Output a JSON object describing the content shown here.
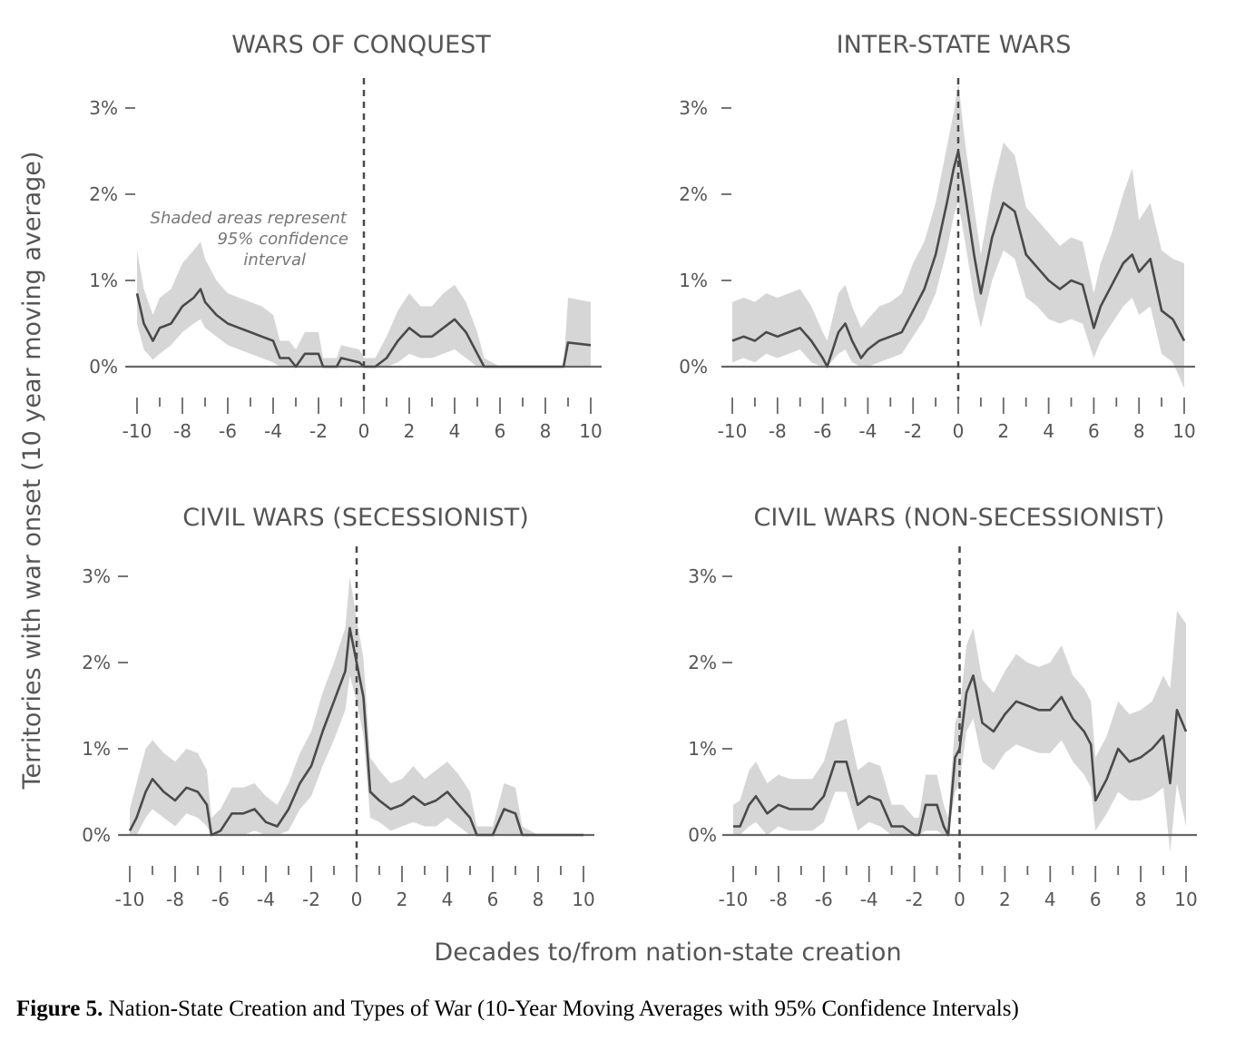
{
  "shared": {
    "y_axis_label": "Territories with war onset (10 year moving average)",
    "x_axis_label": "Decades to/from nation-state creation",
    "annotation_lines": [
      "Shaded areas represent",
      "95% confidence",
      "interval"
    ]
  },
  "caption": {
    "label": "Figure 5.",
    "text": "Nation-State Creation and Types of War (10-Year Moving Averages with 95% Confidence Intervals)"
  },
  "colors": {
    "line": "#4a4a4a",
    "band": "#d6d6d6",
    "axis": "#666666",
    "text": "#555555"
  },
  "chart_data": [
    {
      "type": "line",
      "title": "WARS OF CONQUEST",
      "ylim": [
        0,
        3
      ],
      "xlim": [
        -10,
        10
      ],
      "y_ticks": [
        "0%",
        "1%",
        "2%",
        "3%"
      ],
      "x_ticks": [
        "-10",
        "-8",
        "-6",
        "-4",
        "-2",
        "0",
        "2",
        "4",
        "6",
        "8",
        "10"
      ],
      "grid": false,
      "series": [
        {
          "x": [
            -10,
            -9.7,
            -9.3,
            -9,
            -8.5,
            -8,
            -7.5,
            -7.2,
            -7,
            -6.5,
            -6,
            -5.5,
            -5,
            -4.5,
            -4,
            -3.7,
            -3.3,
            -3,
            -2.6,
            -2,
            -1.8,
            -1.2,
            -1,
            -0.2,
            0,
            0.5,
            1,
            1.5,
            2,
            2.5,
            3,
            3.5,
            4,
            4.5,
            5,
            5.3,
            6,
            7,
            8,
            8.8,
            9,
            10
          ],
          "y": [
            0.85,
            0.5,
            0.3,
            0.45,
            0.5,
            0.7,
            0.8,
            0.9,
            0.75,
            0.6,
            0.5,
            0.45,
            0.4,
            0.35,
            0.3,
            0.1,
            0.1,
            0.0,
            0.15,
            0.15,
            0.0,
            0.0,
            0.1,
            0.05,
            0.0,
            0.0,
            0.1,
            0.3,
            0.45,
            0.35,
            0.35,
            0.45,
            0.55,
            0.4,
            0.15,
            0.0,
            0.0,
            0.0,
            0.0,
            0.0,
            0.28,
            0.25
          ],
          "lower": [
            0.5,
            0.2,
            0.08,
            0.15,
            0.25,
            0.4,
            0.5,
            0.55,
            0.45,
            0.35,
            0.25,
            0.2,
            0.15,
            0.1,
            0.05,
            0.0,
            0.0,
            0.0,
            0.0,
            0.0,
            0.0,
            0.0,
            0.0,
            0.0,
            0.0,
            0.0,
            0.0,
            0.05,
            0.15,
            0.1,
            0.1,
            0.15,
            0.2,
            0.1,
            0.0,
            0.0,
            0.0,
            0.0,
            0.0,
            0.0,
            0.0,
            0.0
          ],
          "upper": [
            1.35,
            0.9,
            0.6,
            0.8,
            0.9,
            1.2,
            1.35,
            1.45,
            1.25,
            1.0,
            0.85,
            0.8,
            0.75,
            0.7,
            0.6,
            0.3,
            0.3,
            0.2,
            0.4,
            0.4,
            0.1,
            0.1,
            0.25,
            0.2,
            0.1,
            0.1,
            0.35,
            0.65,
            0.85,
            0.7,
            0.7,
            0.85,
            0.95,
            0.75,
            0.4,
            0.1,
            0.0,
            0.0,
            0.0,
            0.0,
            0.8,
            0.75
          ]
        }
      ]
    },
    {
      "type": "line",
      "title": "INTER-STATE WARS",
      "ylim": [
        0,
        3
      ],
      "xlim": [
        -10,
        10
      ],
      "y_ticks": [
        "0%",
        "1%",
        "2%",
        "3%"
      ],
      "x_ticks": [
        "-10",
        "-8",
        "-6",
        "-4",
        "-2",
        "0",
        "2",
        "4",
        "6",
        "8",
        "10"
      ],
      "grid": false,
      "series": [
        {
          "x": [
            -10,
            -9.5,
            -9,
            -8.5,
            -8,
            -7.5,
            -7,
            -6.5,
            -6,
            -5.8,
            -5.3,
            -5,
            -4.7,
            -4.3,
            -4,
            -3.5,
            -3,
            -2.5,
            -2,
            -1.5,
            -1,
            -0.5,
            -0.2,
            0,
            0.3,
            0.7,
            1,
            1.5,
            2,
            2.5,
            3,
            3.5,
            4,
            4.5,
            5,
            5.5,
            6,
            6.3,
            6.8,
            7.3,
            7.7,
            8,
            8.5,
            9,
            9.5,
            10
          ],
          "y": [
            0.3,
            0.35,
            0.3,
            0.4,
            0.35,
            0.4,
            0.45,
            0.3,
            0.1,
            0.0,
            0.4,
            0.5,
            0.3,
            0.1,
            0.2,
            0.3,
            0.35,
            0.4,
            0.65,
            0.9,
            1.3,
            1.9,
            2.3,
            2.5,
            2.0,
            1.3,
            0.85,
            1.5,
            1.9,
            1.8,
            1.3,
            1.15,
            1.0,
            0.9,
            1.0,
            0.95,
            0.45,
            0.7,
            0.95,
            1.2,
            1.3,
            1.1,
            1.25,
            0.65,
            0.55,
            0.3
          ],
          "lower": [
            0.05,
            0.1,
            0.05,
            0.15,
            0.1,
            0.15,
            0.2,
            0.05,
            0.0,
            0.0,
            0.15,
            0.2,
            0.05,
            0.0,
            0.0,
            0.05,
            0.1,
            0.15,
            0.35,
            0.55,
            0.85,
            1.35,
            1.75,
            1.9,
            1.45,
            0.8,
            0.45,
            1.0,
            1.35,
            1.25,
            0.8,
            0.7,
            0.55,
            0.5,
            0.55,
            0.5,
            0.1,
            0.3,
            0.5,
            0.7,
            0.8,
            0.6,
            0.7,
            0.15,
            0.05,
            -0.25
          ],
          "upper": [
            0.75,
            0.8,
            0.75,
            0.85,
            0.8,
            0.85,
            0.9,
            0.7,
            0.4,
            0.3,
            0.85,
            0.95,
            0.7,
            0.45,
            0.55,
            0.7,
            0.75,
            0.85,
            1.2,
            1.45,
            1.9,
            2.55,
            2.95,
            3.3,
            2.6,
            1.85,
            1.3,
            2.05,
            2.6,
            2.45,
            1.85,
            1.7,
            1.55,
            1.4,
            1.5,
            1.45,
            0.85,
            1.2,
            1.55,
            2.0,
            2.3,
            1.7,
            1.9,
            1.35,
            1.25,
            1.2
          ]
        }
      ]
    },
    {
      "type": "line",
      "title": "CIVIL WARS (SECESSIONIST)",
      "ylim": [
        0,
        3
      ],
      "xlim": [
        -10,
        10
      ],
      "y_ticks": [
        "0%",
        "1%",
        "2%",
        "3%"
      ],
      "x_ticks": [
        "-10",
        "-8",
        "-6",
        "-4",
        "-2",
        "0",
        "2",
        "4",
        "6",
        "8",
        "10"
      ],
      "grid": false,
      "series": [
        {
          "x": [
            -10,
            -9.7,
            -9.3,
            -9,
            -8.5,
            -8,
            -7.5,
            -7,
            -6.6,
            -6.4,
            -6,
            -5.5,
            -5,
            -4.5,
            -4,
            -3.5,
            -3,
            -2.5,
            -2,
            -1.5,
            -1,
            -0.5,
            -0.3,
            0,
            0.3,
            0.6,
            1,
            1.5,
            2,
            2.5,
            3,
            3.5,
            4,
            4.5,
            5,
            5.3,
            6,
            6.5,
            7,
            7.3,
            8,
            9,
            10
          ],
          "y": [
            0.05,
            0.2,
            0.5,
            0.65,
            0.5,
            0.4,
            0.55,
            0.5,
            0.35,
            0.0,
            0.05,
            0.25,
            0.25,
            0.3,
            0.15,
            0.1,
            0.3,
            0.6,
            0.8,
            1.2,
            1.55,
            1.9,
            2.4,
            2.0,
            1.6,
            0.5,
            0.4,
            0.3,
            0.35,
            0.45,
            0.35,
            0.4,
            0.5,
            0.35,
            0.2,
            0.0,
            0.0,
            0.3,
            0.25,
            0.0,
            0.0,
            0.0,
            0.0
          ],
          "lower": [
            0.0,
            0.0,
            0.2,
            0.3,
            0.2,
            0.1,
            0.25,
            0.2,
            0.1,
            0.0,
            0.0,
            0.0,
            0.0,
            0.05,
            0.0,
            0.0,
            0.05,
            0.3,
            0.45,
            0.8,
            1.1,
            1.45,
            1.85,
            1.55,
            1.15,
            0.2,
            0.15,
            0.05,
            0.1,
            0.15,
            0.1,
            0.1,
            0.2,
            0.1,
            0.0,
            0.0,
            0.0,
            0.0,
            0.0,
            0.0,
            0.0,
            0.0,
            0.0
          ],
          "upper": [
            0.3,
            0.6,
            1.0,
            1.1,
            0.95,
            0.85,
            1.0,
            0.95,
            0.75,
            0.2,
            0.3,
            0.55,
            0.55,
            0.6,
            0.45,
            0.35,
            0.6,
            0.95,
            1.2,
            1.65,
            2.0,
            2.4,
            3.0,
            2.5,
            2.05,
            0.9,
            0.75,
            0.6,
            0.65,
            0.8,
            0.65,
            0.75,
            0.85,
            0.7,
            0.5,
            0.1,
            0.1,
            0.6,
            0.55,
            0.1,
            0.0,
            0.0,
            0.0
          ]
        }
      ]
    },
    {
      "type": "line",
      "title": "CIVIL WARS (NON-SECESSIONIST)",
      "ylim": [
        0,
        3
      ],
      "xlim": [
        -10,
        10
      ],
      "y_ticks": [
        "0%",
        "1%",
        "2%",
        "3%"
      ],
      "x_ticks": [
        "-10",
        "-8",
        "-6",
        "-4",
        "-2",
        "0",
        "2",
        "4",
        "6",
        "8",
        "10"
      ],
      "grid": false,
      "series": [
        {
          "x": [
            -10,
            -9.7,
            -9.3,
            -9,
            -8.5,
            -8,
            -7.5,
            -7,
            -6.5,
            -6,
            -5.5,
            -5,
            -4.5,
            -4,
            -3.5,
            -3,
            -2.5,
            -2,
            -1.8,
            -1.5,
            -1,
            -0.7,
            -0.5,
            -0.2,
            0,
            0.3,
            0.6,
            1,
            1.5,
            2,
            2.5,
            3,
            3.5,
            4,
            4.5,
            5,
            5.5,
            5.8,
            6,
            6.5,
            7,
            7.5,
            8,
            8.5,
            9,
            9.3,
            9.6,
            10
          ],
          "y": [
            0.1,
            0.1,
            0.35,
            0.45,
            0.25,
            0.35,
            0.3,
            0.3,
            0.3,
            0.45,
            0.85,
            0.85,
            0.35,
            0.45,
            0.4,
            0.1,
            0.1,
            0.0,
            0.0,
            0.35,
            0.35,
            0.1,
            0.0,
            0.9,
            1.0,
            1.65,
            1.85,
            1.3,
            1.2,
            1.4,
            1.55,
            1.5,
            1.45,
            1.45,
            1.6,
            1.35,
            1.2,
            1.05,
            0.4,
            0.65,
            1.0,
            0.85,
            0.9,
            1.0,
            1.15,
            0.6,
            1.45,
            1.2
          ],
          "lower": [
            0.0,
            0.0,
            0.1,
            0.15,
            0.0,
            0.1,
            0.05,
            0.05,
            0.05,
            0.15,
            0.5,
            0.5,
            0.05,
            0.15,
            0.1,
            0.0,
            0.0,
            0.0,
            0.0,
            0.05,
            0.05,
            0.0,
            0.0,
            0.5,
            0.6,
            1.2,
            1.35,
            0.85,
            0.75,
            0.95,
            1.05,
            1.0,
            0.95,
            0.95,
            1.1,
            0.85,
            0.7,
            0.55,
            0.05,
            0.25,
            0.5,
            0.4,
            0.4,
            0.45,
            0.55,
            -0.2,
            0.6,
            0.1
          ],
          "upper": [
            0.35,
            0.4,
            0.75,
            0.85,
            0.6,
            0.7,
            0.65,
            0.65,
            0.65,
            0.85,
            1.3,
            1.35,
            0.75,
            0.85,
            0.8,
            0.35,
            0.35,
            0.2,
            0.2,
            0.7,
            0.7,
            0.35,
            0.2,
            1.3,
            1.45,
            2.2,
            2.4,
            1.8,
            1.65,
            1.9,
            2.1,
            2.0,
            1.95,
            2.0,
            2.2,
            1.85,
            1.7,
            1.55,
            0.9,
            1.15,
            1.55,
            1.4,
            1.45,
            1.55,
            1.85,
            1.7,
            2.6,
            2.45
          ]
        }
      ]
    }
  ]
}
